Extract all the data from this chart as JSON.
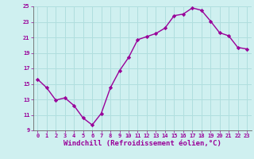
{
  "x": [
    0,
    1,
    2,
    3,
    4,
    5,
    6,
    7,
    8,
    9,
    10,
    11,
    12,
    13,
    14,
    15,
    16,
    17,
    18,
    19,
    20,
    21,
    22,
    23
  ],
  "y": [
    15.6,
    14.5,
    12.9,
    13.2,
    12.2,
    10.6,
    9.7,
    11.2,
    14.5,
    16.7,
    18.4,
    20.7,
    21.1,
    21.5,
    22.2,
    23.8,
    24.0,
    24.8,
    24.5,
    23.1,
    21.6,
    21.2,
    19.7,
    19.5
  ],
  "line_color": "#990099",
  "marker": "D",
  "marker_size": 2.2,
  "bg_color": "#cff0f0",
  "grid_color": "#b0dede",
  "xlabel": "Windchill (Refroidissement éolien,°C)",
  "xlabel_color": "#990099",
  "ylim": [
    9,
    25
  ],
  "xlim": [
    -0.5,
    23.5
  ],
  "yticks": [
    9,
    11,
    13,
    15,
    17,
    19,
    21,
    23,
    25
  ],
  "xticks": [
    0,
    1,
    2,
    3,
    4,
    5,
    6,
    7,
    8,
    9,
    10,
    11,
    12,
    13,
    14,
    15,
    16,
    17,
    18,
    19,
    20,
    21,
    22,
    23
  ],
  "tick_color": "#990099",
  "tick_fontsize": 5.0,
  "xlabel_fontsize": 6.5,
  "line_width": 1.0,
  "spine_color": "#888888"
}
